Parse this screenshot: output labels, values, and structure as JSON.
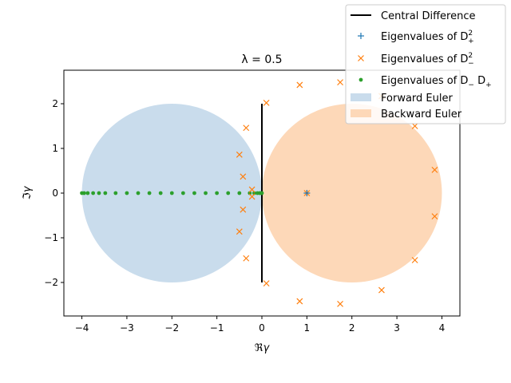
{
  "chart_data": {
    "type": "scatter",
    "title": "λ = 0.5",
    "xlabel": "ℜγ",
    "ylabel": "ℑγ",
    "xlim": [
      -4.4,
      4.4
    ],
    "ylim": [
      -2.75,
      2.75
    ],
    "xticks": [
      -4,
      -3,
      -2,
      -1,
      0,
      1,
      2,
      3,
      4
    ],
    "xtick_labels": [
      "−4",
      "−3",
      "−2",
      "−1",
      "0",
      "1",
      "2",
      "3",
      "4"
    ],
    "yticks": [
      -2,
      -1,
      0,
      1,
      2
    ],
    "ytick_labels": [
      "−2",
      "−1",
      "0",
      "1",
      "2"
    ],
    "grid": false,
    "legend_position": "top-right",
    "regions": [
      {
        "name": "Forward Euler",
        "center": [
          -2,
          0
        ],
        "radius": 2,
        "color": "#c9dcec"
      },
      {
        "name": "Backward Euler",
        "center": [
          2,
          0
        ],
        "radius": 2,
        "color": "#fdd8b8"
      }
    ],
    "series": [
      {
        "name": "Central Difference",
        "kind": "line",
        "color": "#000000",
        "x": [
          0,
          0
        ],
        "y": [
          -2,
          2
        ]
      },
      {
        "name": "Eigenvalues of D_+^2",
        "kind": "plus",
        "color": "#1f77b4",
        "x": [
          1
        ],
        "y": [
          0
        ]
      },
      {
        "name": "Eigenvalues of D_-^2",
        "kind": "x",
        "color": "#ff7f0e",
        "x": [
          1,
          0.1,
          0.1,
          -0.35,
          -0.35,
          -0.5,
          -0.5,
          -0.42,
          -0.42,
          -0.22,
          -0.22,
          0.84,
          0.84,
          1.74,
          1.74,
          2.66,
          2.66,
          3.4,
          3.4,
          3.84,
          3.84
        ],
        "y": [
          0,
          2.02,
          -2.02,
          1.46,
          -1.46,
          0.86,
          -0.86,
          0.37,
          -0.37,
          0.08,
          -0.08,
          2.42,
          -2.42,
          2.48,
          -2.48,
          2.17,
          -2.17,
          1.5,
          -1.5,
          0.52,
          -0.52
        ]
      },
      {
        "name": "Eigenvalues of D_-D_+",
        "kind": "dot",
        "color": "#2ca02c",
        "x": [
          0,
          -0.02,
          -0.05,
          -0.1,
          -0.17,
          -0.27,
          -0.5,
          -0.75,
          -1.0,
          -1.25,
          -1.5,
          -1.75,
          -2.0,
          -2.25,
          -2.5,
          -2.75,
          -3.0,
          -3.25,
          -3.48,
          -3.62,
          -3.75,
          -3.87,
          -3.95,
          -4.0
        ],
        "y": [
          0,
          0,
          0,
          0,
          0,
          0,
          0,
          0,
          0,
          0,
          0,
          0,
          0,
          0,
          0,
          0,
          0,
          0,
          0,
          0,
          0,
          0,
          0,
          0
        ]
      }
    ]
  },
  "legend": {
    "items": [
      {
        "kind": "line",
        "color": "#000000",
        "text": "Central Difference"
      },
      {
        "kind": "plus",
        "color": "#1f77b4",
        "text": "Eigenvalues of D",
        "sub": "+",
        "sup": "2"
      },
      {
        "kind": "x",
        "color": "#ff7f0e",
        "text": "Eigenvalues of D",
        "sub": "−",
        "sup": "2"
      },
      {
        "kind": "dot",
        "color": "#2ca02c",
        "text": "Eigenvalues of D",
        "sub": "−",
        "text2": "D",
        "sub2": "+"
      },
      {
        "kind": "region",
        "color": "#c9dcec",
        "text": "Forward Euler"
      },
      {
        "kind": "region",
        "color": "#fdd8b8",
        "text": "Backward Euler"
      }
    ]
  }
}
